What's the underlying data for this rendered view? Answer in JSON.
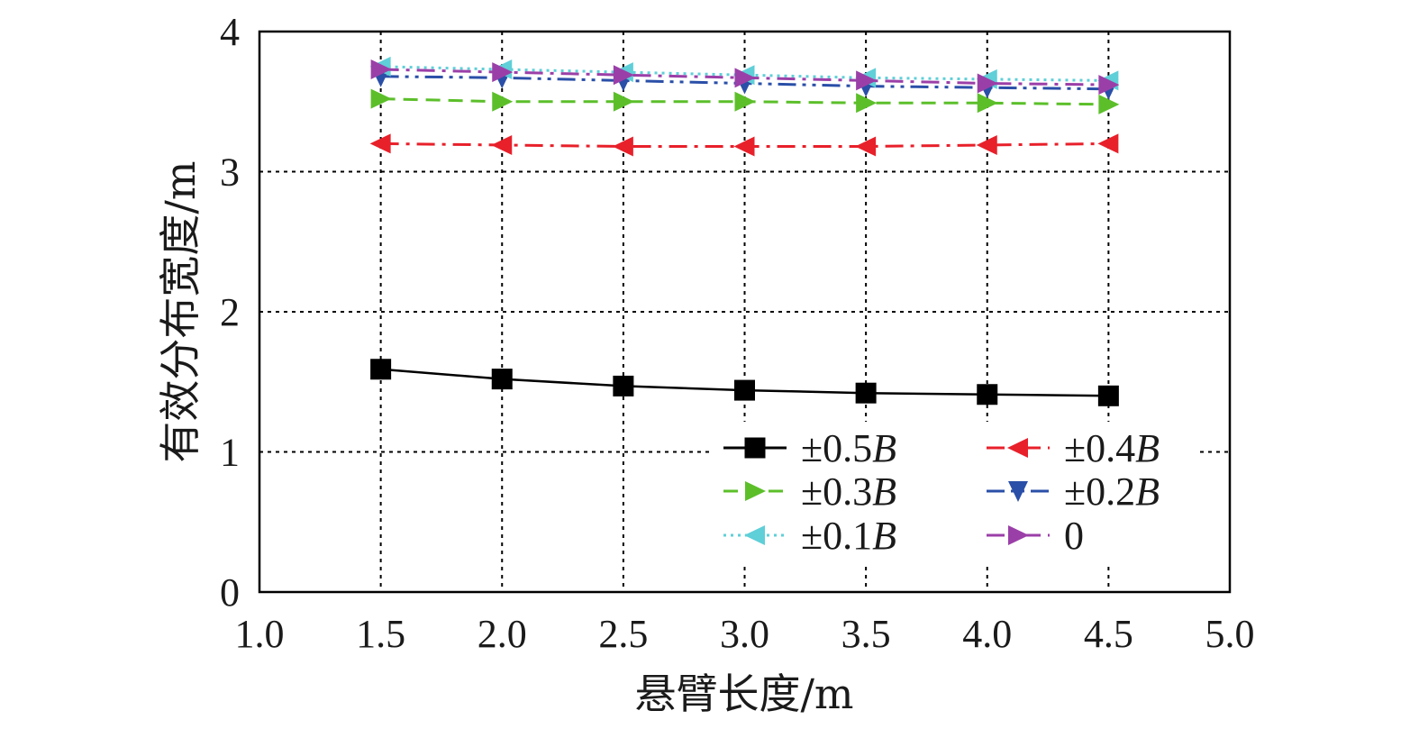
{
  "chart_data": {
    "type": "line",
    "xlabel": "悬臂长度/m",
    "ylabel": "有效分布宽度/m",
    "xlim": [
      1.0,
      5.0
    ],
    "ylim": [
      0,
      4
    ],
    "x_ticks": [
      "1.0",
      "1.5",
      "2.0",
      "2.5",
      "3.0",
      "3.5",
      "4.0",
      "4.5",
      "5.0"
    ],
    "y_ticks": [
      "0",
      "1",
      "2",
      "3",
      "4"
    ],
    "grid": true,
    "legend_position": "bottom-right",
    "x": [
      1.5,
      2.0,
      2.5,
      3.0,
      3.5,
      4.0,
      4.5
    ],
    "series": [
      {
        "name": "±0.5",
        "name_suffix": "B",
        "color": "#000000",
        "marker": "square",
        "dash": "solid",
        "values": [
          1.59,
          1.52,
          1.47,
          1.44,
          1.42,
          1.41,
          1.4
        ]
      },
      {
        "name": "±0.4",
        "name_suffix": "B",
        "color": "#e8202a",
        "marker": "triangle-left",
        "dash": "dashdot",
        "values": [
          3.2,
          3.19,
          3.18,
          3.18,
          3.18,
          3.19,
          3.2
        ]
      },
      {
        "name": "±0.3",
        "name_suffix": "B",
        "color": "#5cbf2a",
        "marker": "triangle-right",
        "dash": "dash",
        "values": [
          3.52,
          3.5,
          3.5,
          3.5,
          3.49,
          3.49,
          3.48
        ]
      },
      {
        "name": "±0.2",
        "name_suffix": "B",
        "color": "#2a4fa8",
        "marker": "triangle-down",
        "dash": "dashdotdot",
        "values": [
          3.68,
          3.67,
          3.65,
          3.63,
          3.61,
          3.6,
          3.59
        ]
      },
      {
        "name": "±0.1",
        "name_suffix": "B",
        "color": "#5fcfd8",
        "marker": "triangle-left",
        "dash": "dot",
        "values": [
          3.75,
          3.73,
          3.71,
          3.69,
          3.67,
          3.66,
          3.65
        ]
      },
      {
        "name": "0",
        "name_suffix": "",
        "color": "#9b3fa8",
        "marker": "triangle-right",
        "dash": "dashdot",
        "values": [
          3.73,
          3.71,
          3.69,
          3.67,
          3.65,
          3.63,
          3.62
        ]
      }
    ]
  }
}
